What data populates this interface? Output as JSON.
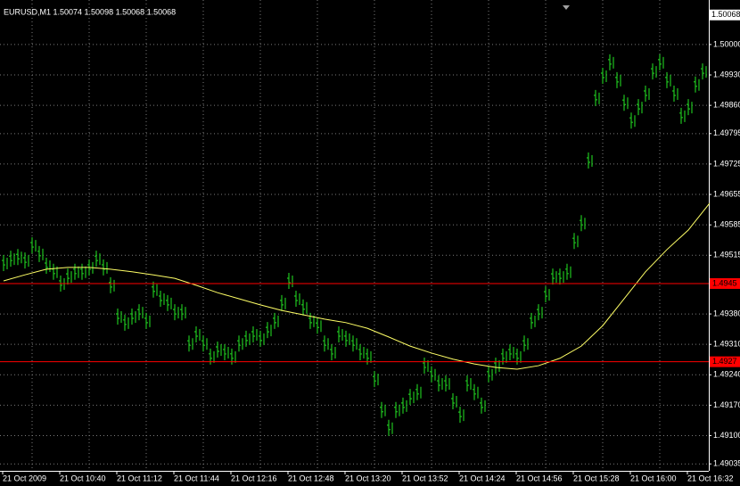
{
  "chart_data": {
    "type": "ohlc",
    "title": "EURUSD,M1  1.50074 1.50098 1.50068 1.50068",
    "last_price": {
      "value": 1.50068,
      "label": "1.50068"
    },
    "ylim": [
      1.49019,
      1.50086
    ],
    "yticks": [
      {
        "value": 1.5,
        "label": "1.50000"
      },
      {
        "value": 1.4993,
        "label": "1.49930"
      },
      {
        "value": 1.4986,
        "label": "1.49860"
      },
      {
        "value": 1.49795,
        "label": "1.49795"
      },
      {
        "value": 1.49725,
        "label": "1.49725"
      },
      {
        "value": 1.49655,
        "label": "1.49655"
      },
      {
        "value": 1.49585,
        "label": "1.49585"
      },
      {
        "value": 1.49515,
        "label": "1.49515"
      },
      {
        "value": 1.4938,
        "label": "1.49380"
      },
      {
        "value": 1.4931,
        "label": "1.49310"
      },
      {
        "value": 1.4924,
        "label": "1.49240"
      },
      {
        "value": 1.4917,
        "label": "1.49170"
      },
      {
        "value": 1.491,
        "label": "1.49100"
      },
      {
        "value": 1.49035,
        "label": "1.49035"
      }
    ],
    "x_labels": [
      "21 Oct 2009",
      "21 Oct 10:40",
      "21 Oct 11:12",
      "21 Oct 11:44",
      "21 Oct 12:16",
      "21 Oct 12:48",
      "21 Oct 13:20",
      "21 Oct 13:52",
      "21 Oct 14:24",
      "21 Oct 14:56",
      "21 Oct 15:28",
      "21 Oct 16:00",
      "21 Oct 16:32"
    ],
    "grid": true,
    "hlines": [
      {
        "value": 1.4945,
        "label": "1.4945",
        "color": "#ff0000"
      },
      {
        "value": 1.4927,
        "label": "1.4927",
        "color": "#ff0000"
      }
    ],
    "series": [
      {
        "color": "#1fc21f",
        "values": [
          1.49497,
          1.49507,
          1.49511,
          1.49503,
          1.49538,
          1.49518,
          1.49491,
          1.49477,
          1.4945,
          1.49466,
          1.49477,
          1.49477,
          1.49487,
          1.49507,
          1.49487,
          1.49446,
          1.49374,
          1.4936,
          1.49374,
          1.49384,
          1.49364,
          1.49436,
          1.49415,
          1.49405,
          1.49384,
          1.49384,
          1.49312,
          1.49333,
          1.49312,
          1.49282,
          1.49298,
          1.49292,
          1.49282,
          1.49312,
          1.49323,
          1.49333,
          1.49323,
          1.49343,
          1.49364,
          1.49405,
          1.49456,
          1.49415,
          1.49395,
          1.49364,
          1.49353,
          1.49312,
          1.49292,
          1.49333,
          1.49323,
          1.49312,
          1.49292,
          1.49282,
          1.4923,
          1.49159,
          1.49118,
          1.49159,
          1.49169,
          1.49189,
          1.492,
          1.49261,
          1.49241,
          1.4922,
          1.4922,
          1.49179,
          1.49148,
          1.4922,
          1.492,
          1.49169,
          1.49241,
          1.49261,
          1.49282,
          1.49292,
          1.49282,
          1.49312,
          1.49364,
          1.49384,
          1.49425,
          1.49466,
          1.49466,
          1.49477,
          1.49548,
          1.49589,
          1.49733,
          1.49877,
          1.49928,
          1.49959,
          1.49918,
          1.49866,
          1.49825,
          1.49856,
          1.49887,
          1.49938,
          1.49959,
          1.49918,
          1.49887,
          1.49836,
          1.49856,
          1.49908,
          1.49938
        ]
      },
      {
        "color": "#ffff66",
        "values": [
          1.49456,
          1.4947,
          1.49483,
          1.49487,
          1.49487,
          1.49483,
          1.49477,
          1.4947,
          1.49462,
          1.49446,
          1.49429,
          1.49415,
          1.49401,
          1.49388,
          1.49378,
          1.49368,
          1.4936,
          1.49347,
          1.49327,
          1.49306,
          1.4929,
          1.49276,
          1.49265,
          1.49257,
          1.49253,
          1.49261,
          1.49278,
          1.49306,
          1.49353,
          1.49415,
          1.49477,
          1.49528,
          1.49573,
          1.49635
        ]
      }
    ]
  }
}
